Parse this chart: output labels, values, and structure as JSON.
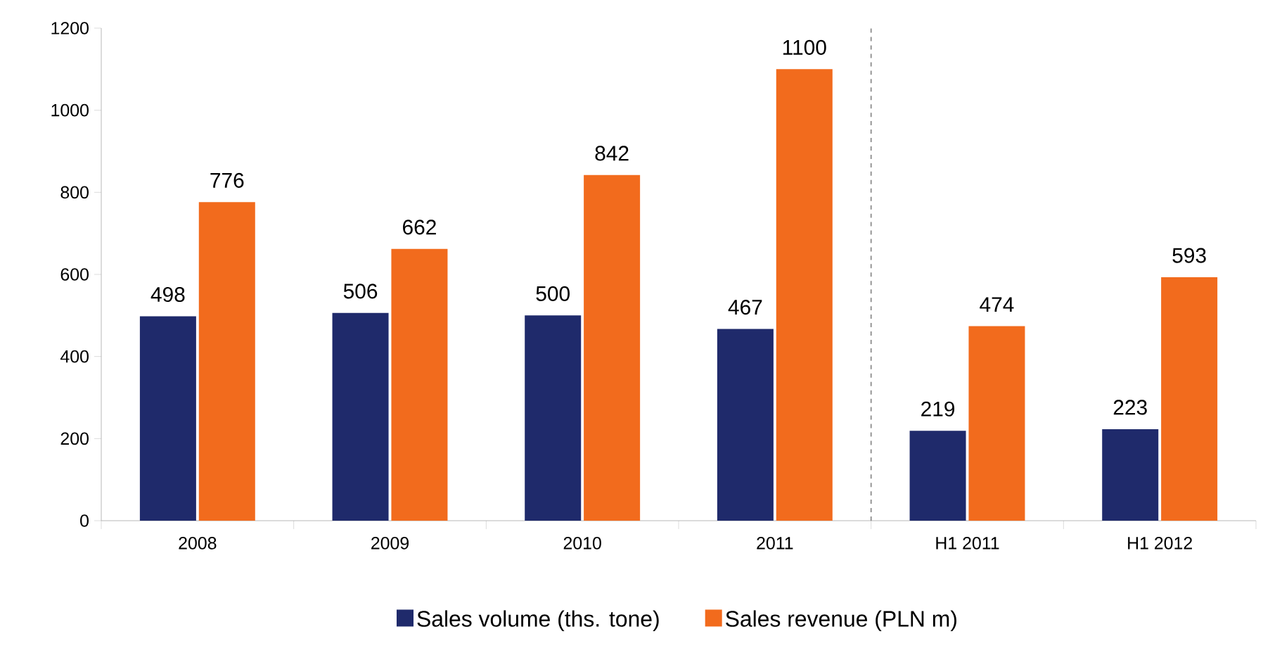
{
  "chart_data": {
    "type": "bar",
    "categories": [
      "2008",
      "2009",
      "2010",
      "2011",
      "H1 2011",
      "H1 2012"
    ],
    "series": [
      {
        "name": "Sales volume (ths. tone)",
        "color": "#1f2a6b",
        "values": [
          498,
          506,
          500,
          467,
          219,
          223
        ]
      },
      {
        "name": "Sales revenue (PLN m)",
        "color": "#f26b1d",
        "values": [
          776,
          662,
          842,
          1100,
          474,
          593
        ]
      }
    ],
    "ylim": [
      0,
      1200
    ],
    "yticks": [
      0,
      200,
      400,
      600,
      800,
      1000,
      1200
    ],
    "data_labels": true,
    "legend": "bottom",
    "grid": false
  }
}
